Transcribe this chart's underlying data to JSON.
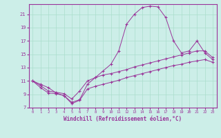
{
  "xlabel": "Windchill (Refroidissement éolien,°C)",
  "bg_color": "#cceee8",
  "line_color": "#993399",
  "grid_color": "#aaddcc",
  "xlim": [
    -0.5,
    23.5
  ],
  "ylim": [
    7,
    22.5
  ],
  "yticks": [
    7,
    9,
    11,
    13,
    15,
    17,
    19,
    21
  ],
  "xticks": [
    0,
    1,
    2,
    3,
    4,
    5,
    6,
    7,
    8,
    9,
    10,
    11,
    12,
    13,
    14,
    15,
    16,
    17,
    18,
    19,
    20,
    21,
    22,
    23
  ],
  "hours": [
    0,
    1,
    2,
    3,
    4,
    5,
    6,
    7,
    8,
    9,
    10,
    11,
    12,
    13,
    14,
    15,
    16,
    17,
    18,
    19,
    20,
    21,
    22,
    23
  ],
  "temp": [
    11.0,
    10.5,
    10.0,
    9.2,
    8.8,
    7.8,
    8.2,
    10.5,
    11.5,
    12.5,
    13.5,
    15.5,
    19.5,
    21.0,
    22.0,
    22.2,
    22.1,
    20.5,
    17.0,
    15.2,
    15.5,
    17.0,
    15.2,
    14.2
  ],
  "wc_upper": [
    11.0,
    10.3,
    9.5,
    9.3,
    9.1,
    8.3,
    9.5,
    11.0,
    11.5,
    11.9,
    12.1,
    12.4,
    12.7,
    13.1,
    13.4,
    13.7,
    14.0,
    14.3,
    14.6,
    14.9,
    15.2,
    15.5,
    15.5,
    14.5
  ],
  "wc_lower": [
    11.0,
    10.0,
    9.2,
    9.1,
    8.8,
    7.6,
    8.1,
    9.8,
    10.2,
    10.5,
    10.8,
    11.1,
    11.5,
    11.8,
    12.1,
    12.4,
    12.7,
    13.0,
    13.3,
    13.5,
    13.8,
    14.0,
    14.2,
    13.8
  ]
}
